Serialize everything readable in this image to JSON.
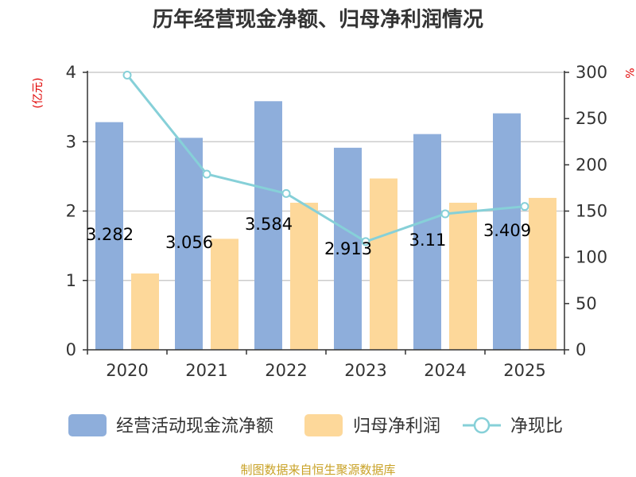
{
  "chart_data": {
    "type": "bar",
    "title": "历年经营现金净额、归母净利润情况",
    "categories": [
      "2020",
      "2021",
      "2022",
      "2023",
      "2024",
      "2025"
    ],
    "series": [
      {
        "name": "经营活动现金流净额",
        "type": "bar",
        "axis": "left",
        "values": [
          3.282,
          3.056,
          3.584,
          2.913,
          3.11,
          3.409
        ],
        "color": "#8eaedb"
      },
      {
        "name": "归母净利润",
        "type": "bar",
        "axis": "left",
        "values": [
          1.1,
          1.6,
          2.12,
          2.47,
          2.12,
          2.19
        ],
        "color": "#fdd89a"
      },
      {
        "name": "净现比",
        "type": "line",
        "axis": "right",
        "values": [
          297,
          190,
          169,
          117,
          147,
          155
        ],
        "color": "#86d0d8"
      }
    ],
    "data_labels": [
      "3.282",
      "3.056",
      "3.584",
      "2.913",
      "3.11",
      "3.409"
    ],
    "y_left": {
      "label": "(亿元)",
      "ylim": [
        0,
        4
      ],
      "ticks": [
        "0",
        "1",
        "2",
        "3",
        "4"
      ]
    },
    "y_right": {
      "label": "%",
      "ylim": [
        0,
        300
      ],
      "ticks": [
        "0",
        "50",
        "100",
        "150",
        "200",
        "250",
        "300"
      ]
    },
    "grid": true,
    "legend_placement": "bottom",
    "source": "制图数据来自恒生聚源数据库"
  }
}
